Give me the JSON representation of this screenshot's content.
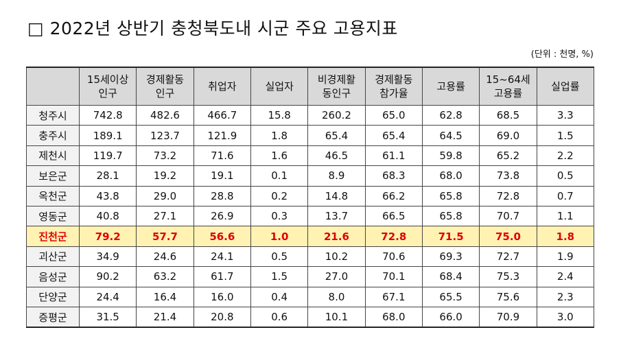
{
  "header": {
    "title": "□ 2022년 상반기 충청북도내 시군 주요 고용지표",
    "unit_note": "(단위 : 천명, %)"
  },
  "table": {
    "columns": [
      "15세이상\n인구",
      "경제활동\n인구",
      "취업자",
      "실업자",
      "비경제활\n동인구",
      "경제활동\n참가율",
      "고용률",
      "15~64세\n고용률",
      "실업률"
    ],
    "rows": [
      {
        "name": "청주시",
        "values": [
          "742.8",
          "482.6",
          "466.7",
          "15.8",
          "260.2",
          "65.0",
          "62.8",
          "68.5",
          "3.3"
        ],
        "highlighted": false
      },
      {
        "name": "충주시",
        "values": [
          "189.1",
          "123.7",
          "121.9",
          "1.8",
          "65.4",
          "65.4",
          "64.5",
          "69.0",
          "1.5"
        ],
        "highlighted": false
      },
      {
        "name": "제천시",
        "values": [
          "119.7",
          "73.2",
          "71.6",
          "1.6",
          "46.5",
          "61.1",
          "59.8",
          "65.2",
          "2.2"
        ],
        "highlighted": false
      },
      {
        "name": "보은군",
        "values": [
          "28.1",
          "19.2",
          "19.1",
          "0.1",
          "8.9",
          "68.3",
          "68.0",
          "73.8",
          "0.5"
        ],
        "highlighted": false
      },
      {
        "name": "옥천군",
        "values": [
          "43.8",
          "29.0",
          "28.8",
          "0.2",
          "14.8",
          "66.2",
          "65.8",
          "72.8",
          "0.7"
        ],
        "highlighted": false
      },
      {
        "name": "영동군",
        "values": [
          "40.8",
          "27.1",
          "26.9",
          "0.3",
          "13.7",
          "66.5",
          "65.8",
          "70.7",
          "1.1"
        ],
        "highlighted": false
      },
      {
        "name": "진천군",
        "values": [
          "79.2",
          "57.7",
          "56.6",
          "1.0",
          "21.6",
          "72.8",
          "71.5",
          "75.0",
          "1.8"
        ],
        "highlighted": true
      },
      {
        "name": "괴산군",
        "values": [
          "34.9",
          "24.6",
          "24.1",
          "0.5",
          "10.2",
          "70.6",
          "69.3",
          "72.7",
          "1.9"
        ],
        "highlighted": false
      },
      {
        "name": "음성군",
        "values": [
          "90.2",
          "63.2",
          "61.7",
          "1.5",
          "27.0",
          "70.1",
          "68.4",
          "75.3",
          "2.4"
        ],
        "highlighted": false
      },
      {
        "name": "단양군",
        "values": [
          "24.4",
          "16.4",
          "16.0",
          "0.4",
          "8.0",
          "67.1",
          "65.5",
          "75.6",
          "2.3"
        ],
        "highlighted": false
      },
      {
        "name": "증평군",
        "values": [
          "31.5",
          "21.4",
          "20.8",
          "0.6",
          "10.1",
          "68.0",
          "66.0",
          "70.9",
          "3.0"
        ],
        "highlighted": false
      }
    ]
  }
}
